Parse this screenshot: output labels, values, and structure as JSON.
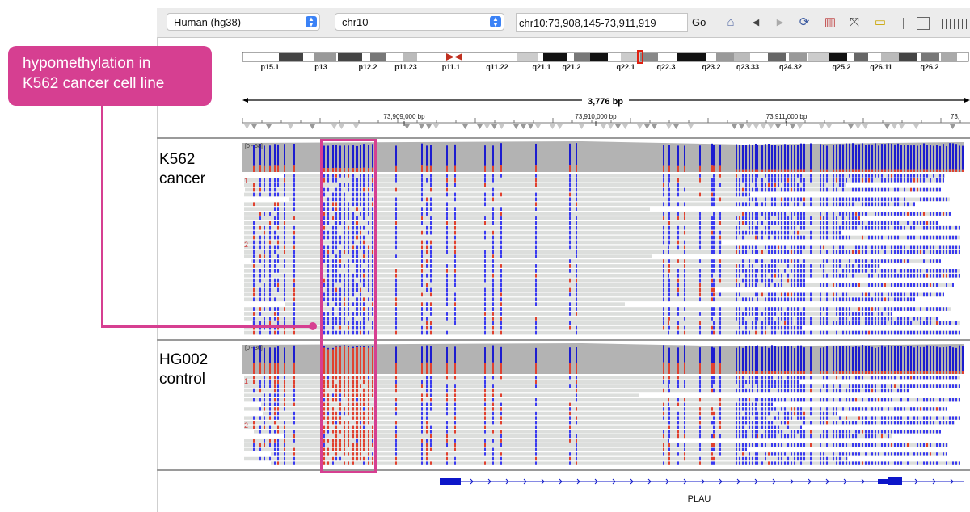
{
  "toolbar": {
    "genome": "Human (hg38)",
    "chromosome": "chr10",
    "locus": "chr10:73,908,145-73,911,919",
    "go": "Go"
  },
  "ideogram": {
    "bands": [
      "p15.1",
      "p13",
      "p12.2",
      "p11.23",
      "p11.1",
      "q11.22",
      "q21.1",
      "q21.2",
      "q22.1",
      "q22.3",
      "q23.2",
      "q23.33",
      "q24.32",
      "q25.2",
      "q26.11",
      "q26.2"
    ]
  },
  "ruler": {
    "span": "3,776 bp",
    "ticks": [
      "73,909,000 bp",
      "73,910,000 bp",
      "73,911,000 bp",
      "73,"
    ]
  },
  "tracks": {
    "k562": {
      "line1": "K562",
      "line2": "cancer",
      "scale": "[0 - 68]"
    },
    "hg002": {
      "line1": "HG002",
      "line2": "control",
      "scale": "[0 - 30]"
    },
    "group_labels": [
      "1",
      "2"
    ]
  },
  "gene": {
    "name": "PLAU"
  },
  "annotation": {
    "line1": "hypomethylation in",
    "line2": "K562 cancer cell line"
  },
  "colors": {
    "methylated": "#e0412f",
    "unmethylated": "#1c1ccf",
    "coverage": "#b3b3b3",
    "read": "#dcdedc",
    "highlight": "#d63f91",
    "gene": "#0d16c9"
  }
}
